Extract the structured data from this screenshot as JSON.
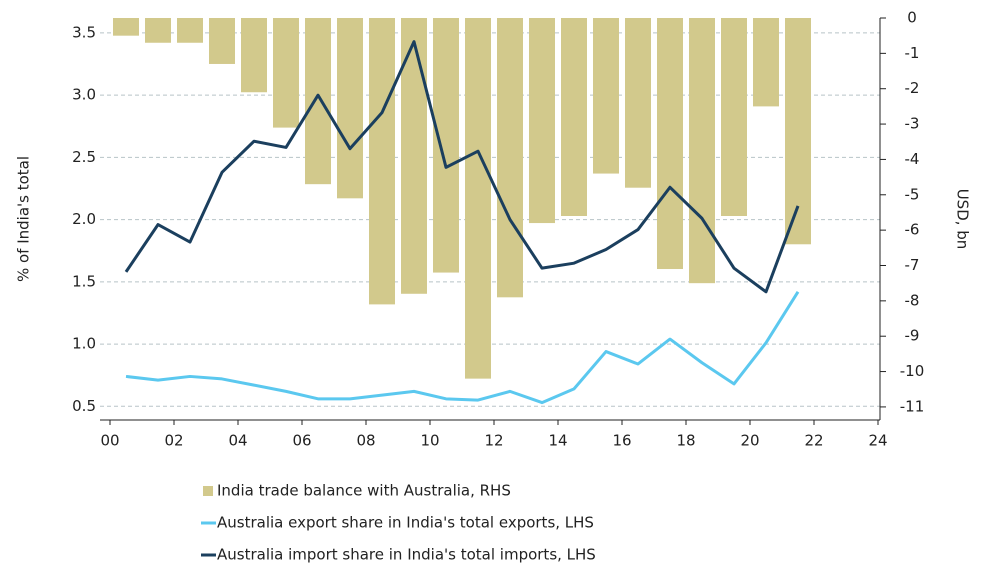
{
  "chart_data": {
    "type": "bar-line",
    "ylabel": "% of India's total",
    "y2label": "USD, bn",
    "x": [
      0.5,
      1.5,
      2.5,
      3.5,
      4.5,
      5.5,
      6.5,
      7.5,
      8.5,
      9.5,
      10.5,
      11.5,
      12.5,
      13.5,
      14.5,
      15.5,
      16.5,
      17.5,
      18.5,
      19.5,
      20.5,
      21.5
    ],
    "series": [
      {
        "name": "India trade balance with Australia, RHS",
        "type": "bar",
        "axis": "y2",
        "color": "#d2c98c",
        "values": [
          -0.5,
          -0.7,
          -0.7,
          -1.3,
          -2.1,
          -3.1,
          -4.7,
          -5.1,
          -8.1,
          -7.8,
          -7.2,
          -10.2,
          -7.9,
          -5.8,
          -5.6,
          -4.4,
          -4.8,
          -7.1,
          -7.5,
          -5.6,
          -2.5,
          -6.4
        ]
      },
      {
        "name": "Australia export share in India's total exports, LHS",
        "type": "line",
        "axis": "y",
        "color": "#5bc8ef",
        "values": [
          0.74,
          0.71,
          0.74,
          0.72,
          0.67,
          0.62,
          0.56,
          0.56,
          0.59,
          0.62,
          0.56,
          0.55,
          0.62,
          0.53,
          0.64,
          0.94,
          0.84,
          1.04,
          0.85,
          0.68,
          1.01,
          1.42
        ]
      },
      {
        "name": "Australia import share in India's total imports, LHS",
        "type": "line",
        "axis": "y",
        "color": "#1b3f5e",
        "values": [
          1.58,
          1.96,
          1.82,
          2.38,
          2.63,
          2.58,
          3.0,
          2.57,
          2.86,
          3.43,
          2.42,
          2.55,
          2.0,
          1.61,
          1.65,
          1.76,
          1.92,
          2.26,
          2.01,
          1.61,
          1.42,
          2.11
        ]
      }
    ],
    "xlim": [
      0,
      24
    ],
    "xticks": [
      {
        "value": 0,
        "label": "00"
      },
      {
        "value": 2,
        "label": "02"
      },
      {
        "value": 4,
        "label": "04"
      },
      {
        "value": 6,
        "label": "06"
      },
      {
        "value": 8,
        "label": "08"
      },
      10,
      12,
      14,
      16,
      18,
      20,
      22,
      24
    ],
    "ylim": [
      0.39,
      3.62
    ],
    "yticks": [
      0.5,
      {
        "value": 1,
        "label": "1.0"
      },
      1.5,
      {
        "value": 2,
        "label": "2.0"
      },
      2.5,
      {
        "value": 3,
        "label": "3.0"
      },
      3.5
    ],
    "y2lim": [
      -11.37,
      0
    ],
    "y2ticks": [
      0,
      -1,
      -2,
      -3,
      -4,
      -5,
      -6,
      -7,
      -8,
      -9,
      -10,
      -11
    ],
    "grid": true
  }
}
